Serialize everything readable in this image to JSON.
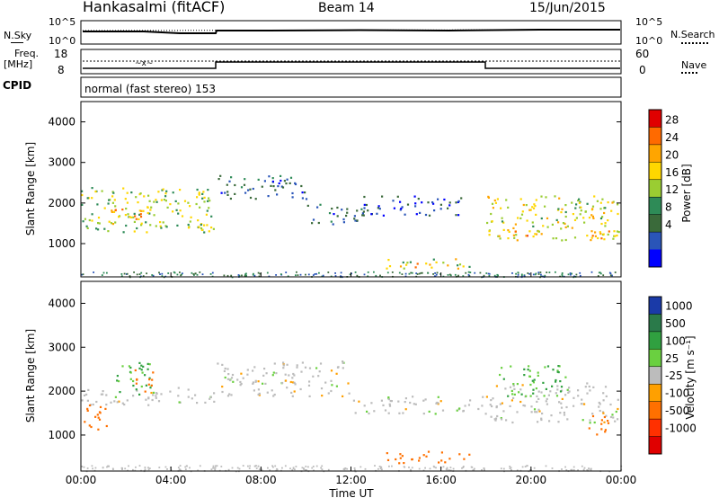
{
  "header": {
    "station": "Hankasalmi (fitACF)",
    "beam": "Beam 14",
    "date": "15/Jun/2015"
  },
  "summary": {
    "nsky_label": "N.Sky",
    "nsearch_label": "N.Search",
    "freq_label_line1": "Freq.",
    "freq_label_line2": "[MHz]",
    "nave_label": "Nave",
    "cpid_label": "CPID",
    "cpid_text": "normal (fast stereo) 153",
    "noise_ticks_left": [
      "10^5",
      "10^0"
    ],
    "noise_ticks_right": [
      "10^5",
      "10^0"
    ],
    "freq_ticks": [
      "18",
      "8"
    ],
    "nave_ticks": [
      "60",
      "0"
    ]
  },
  "power_scale": {
    "title": "Power [dB]",
    "ticks": [
      "28",
      "24",
      "20",
      "16",
      "12",
      "8",
      "4"
    ],
    "colors": [
      "#0000ff",
      "#2a55b8",
      "#3a6a3a",
      "#2e8b57",
      "#9acd32",
      "#ffd700",
      "#ffa500",
      "#ff6a00",
      "#e00000"
    ]
  },
  "velocity_scale": {
    "title": "Velocity [m s⁻¹]",
    "ticks": [
      "1000",
      "500",
      "100",
      "25",
      "-25",
      "-100",
      "-500",
      "-1000"
    ],
    "colors": [
      "#1a3aa8",
      "#2a7a4a",
      "#30a040",
      "#6ad040",
      "#bcbcbc",
      "#ffa000",
      "#ff7000",
      "#ff3000",
      "#e00000"
    ]
  },
  "axes": {
    "ylabel": "Slant Range [km]",
    "xlabel": "Time UT",
    "yticks": [
      "4000",
      "3000",
      "2000",
      "1000"
    ],
    "xticks": [
      "00:00",
      "04:00",
      "08:00",
      "12:00",
      "16:00",
      "20:00",
      "00:00"
    ]
  },
  "chart_data": [
    {
      "type": "heatmap",
      "name": "power",
      "colorbar_label": "Power [dB]",
      "ylabel": "Slant Range [km]",
      "x_range_hours": [
        0,
        24
      ],
      "y_range_km": [
        180,
        4500
      ],
      "features": [
        {
          "t": [
            0.0,
            5.9
          ],
          "r": [
            1300,
            2400
          ],
          "value": 16
        },
        {
          "t": [
            1.0,
            3.0
          ],
          "r": [
            1500,
            1900
          ],
          "value": 22
        },
        {
          "t": [
            5.0,
            5.8
          ],
          "r": [
            1250,
            1550
          ],
          "value": 20
        },
        {
          "t": [
            6.0,
            10.0
          ],
          "r": [
            2100,
            2700
          ],
          "value": 8
        },
        {
          "t": [
            10.0,
            12.5
          ],
          "r": [
            1500,
            2000
          ],
          "value": 8
        },
        {
          "t": [
            12.5,
            17.0
          ],
          "r": [
            1700,
            2200
          ],
          "value": 6
        },
        {
          "t": [
            13.5,
            17.3
          ],
          "r": [
            400,
            650
          ],
          "value": 18
        },
        {
          "t": [
            14.0,
            15.0
          ],
          "r": [
            430,
            560
          ],
          "value": 26
        },
        {
          "t": [
            18.0,
            23.9
          ],
          "r": [
            1100,
            2200
          ],
          "value": 18
        },
        {
          "t": [
            18.5,
            20.5
          ],
          "r": [
            1150,
            1400
          ],
          "value": 24
        },
        {
          "t": [
            22.5,
            23.5
          ],
          "r": [
            1100,
            1400
          ],
          "value": 24
        }
      ]
    },
    {
      "type": "heatmap",
      "name": "velocity",
      "colorbar_label": "Velocity [m s⁻¹]",
      "ylabel": "Slant Range [km]",
      "xlabel": "Time UT",
      "x_range_hours": [
        0,
        24
      ],
      "y_range_km": [
        180,
        4500
      ],
      "features": [
        {
          "t": [
            0.0,
            5.9
          ],
          "r": [
            1700,
            2100
          ],
          "value": 0
        },
        {
          "t": [
            0.0,
            1.2
          ],
          "r": [
            1100,
            1700
          ],
          "value": -200
        },
        {
          "t": [
            1.5,
            3.2
          ],
          "r": [
            1900,
            2700
          ],
          "value": 60
        },
        {
          "t": [
            2.3,
            3.2
          ],
          "r": [
            2000,
            2500
          ],
          "value": -200
        },
        {
          "t": [
            6.0,
            12.0
          ],
          "r": [
            1900,
            2700
          ],
          "value": 0
        },
        {
          "t": [
            12.0,
            18.0
          ],
          "r": [
            1500,
            1900
          ],
          "value": 0
        },
        {
          "t": [
            13.5,
            17.3
          ],
          "r": [
            380,
            650
          ],
          "value": -300
        },
        {
          "t": [
            18.0,
            23.9
          ],
          "r": [
            1300,
            2200
          ],
          "value": 0
        },
        {
          "t": [
            18.5,
            21.5
          ],
          "r": [
            1900,
            2600
          ],
          "value": 60
        },
        {
          "t": [
            22.5,
            23.5
          ],
          "r": [
            1000,
            1500
          ],
          "value": -200
        }
      ]
    }
  ]
}
